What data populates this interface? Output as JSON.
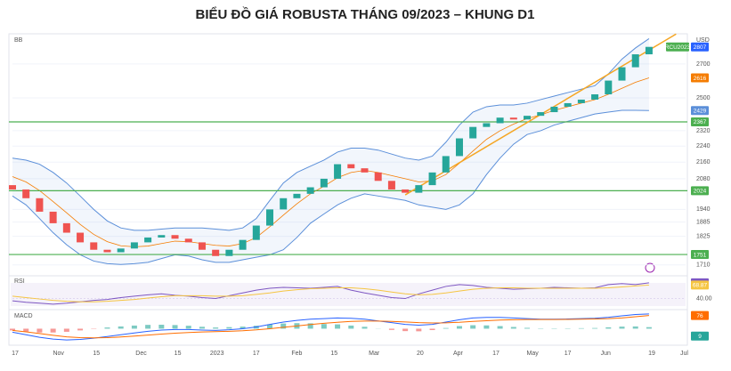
{
  "chart_data": [
    {
      "type": "candlestick",
      "title": "BIỂU ĐỒ GIÁ ROBUSTA THÁNG 09/2023 – KHUNG D1",
      "panel_label": "BB",
      "unit_label": "USD",
      "symbol": "RCU2023",
      "log_scale": true,
      "x": [
        0,
        1,
        2,
        3,
        4,
        5,
        6,
        7,
        8,
        9,
        10,
        11,
        12,
        13,
        14,
        15,
        16,
        17,
        18,
        19,
        20,
        21,
        22,
        23,
        24,
        25,
        26,
        27,
        28,
        29,
        30,
        31,
        32,
        33,
        34,
        35,
        36,
        37,
        38,
        39,
        40,
        41,
        42,
        43,
        44,
        45,
        46,
        47
      ],
      "open": [
        2050,
        2030,
        1990,
        1930,
        1880,
        1840,
        1800,
        1770,
        1760,
        1775,
        1800,
        1820,
        1830,
        1815,
        1800,
        1770,
        1745,
        1770,
        1810,
        1870,
        1940,
        1990,
        2010,
        2040,
        2080,
        2150,
        2130,
        2110,
        2070,
        2030,
        2015,
        2050,
        2110,
        2190,
        2280,
        2340,
        2360,
        2390,
        2380,
        2400,
        2420,
        2450,
        2470,
        2490,
        2520,
        2600,
        2680,
        2760
      ],
      "close": [
        2030,
        1990,
        1930,
        1880,
        1840,
        1800,
        1770,
        1760,
        1775,
        1800,
        1820,
        1830,
        1815,
        1800,
        1770,
        1745,
        1770,
        1810,
        1870,
        1940,
        1990,
        2010,
        2040,
        2080,
        2150,
        2130,
        2110,
        2070,
        2030,
        2015,
        2050,
        2110,
        2190,
        2280,
        2340,
        2360,
        2390,
        2380,
        2400,
        2420,
        2450,
        2470,
        2490,
        2520,
        2600,
        2680,
        2760,
        2807
      ],
      "up_color": "#26a69a",
      "down_color": "#ef5350",
      "upper": [
        2180,
        2170,
        2150,
        2110,
        2060,
        2000,
        1940,
        1890,
        1860,
        1850,
        1850,
        1855,
        1860,
        1860,
        1860,
        1855,
        1850,
        1860,
        1900,
        1980,
        2060,
        2110,
        2140,
        2170,
        2210,
        2230,
        2230,
        2220,
        2200,
        2180,
        2170,
        2190,
        2260,
        2350,
        2420,
        2450,
        2460,
        2460,
        2470,
        2490,
        2510,
        2530,
        2550,
        2570,
        2640,
        2730,
        2800,
        2860
      ],
      "basis": [
        2090,
        2065,
        2025,
        1975,
        1925,
        1875,
        1833,
        1803,
        1786,
        1782,
        1785,
        1795,
        1805,
        1803,
        1795,
        1788,
        1785,
        1795,
        1820,
        1865,
        1915,
        1965,
        2010,
        2045,
        2085,
        2110,
        2120,
        2110,
        2095,
        2080,
        2065,
        2070,
        2100,
        2155,
        2215,
        2275,
        2320,
        2355,
        2385,
        2405,
        2430,
        2450,
        2470,
        2490,
        2520,
        2555,
        2590,
        2616
      ],
      "lower": [
        2000,
        1960,
        1900,
        1840,
        1790,
        1750,
        1725,
        1715,
        1712,
        1715,
        1720,
        1735,
        1750,
        1745,
        1730,
        1720,
        1720,
        1730,
        1740,
        1750,
        1770,
        1820,
        1880,
        1920,
        1960,
        1990,
        2010,
        2000,
        1990,
        1980,
        1960,
        1950,
        1940,
        1960,
        2010,
        2100,
        2180,
        2250,
        2300,
        2320,
        2350,
        2370,
        2390,
        2410,
        2420,
        2430,
        2430,
        2429
      ],
      "band_color": "#5b8fd9",
      "basis_color": "#f57c00",
      "trendline": {
        "x": [
          29,
          49
        ],
        "values": [
          2005,
          2890
        ],
        "color": "#f5a623"
      },
      "levels": [
        2367,
        2024,
        1751
      ],
      "level_color": "#4caf50",
      "ylim": [
        1675,
        2880
      ],
      "yticks": [
        2700,
        2500,
        2320,
        2240,
        2160,
        2080,
        1940,
        1885,
        1825,
        1710
      ],
      "xlim": [
        0,
        49.7
      ],
      "xticks": [
        {
          "value": 0.2,
          "label": "17"
        },
        {
          "value": 3.4,
          "label": "Nov"
        },
        {
          "value": 6.2,
          "label": "15"
        },
        {
          "value": 9.5,
          "label": "Dec"
        },
        {
          "value": 12.2,
          "label": "15"
        },
        {
          "value": 15.1,
          "label": "2023"
        },
        {
          "value": 18,
          "label": "17"
        },
        {
          "value": 21,
          "label": "Feb"
        },
        {
          "value": 23.75,
          "label": "15"
        },
        {
          "value": 26.7,
          "label": "Mar"
        },
        {
          "value": 30.1,
          "label": "20"
        },
        {
          "value": 32.9,
          "label": "Apr"
        },
        {
          "value": 35.7,
          "label": "17"
        },
        {
          "value": 38.4,
          "label": "May"
        },
        {
          "value": 41,
          "label": "17"
        },
        {
          "value": 43.8,
          "label": "Jun"
        },
        {
          "value": 47.2,
          "label": "19"
        },
        {
          "value": 49.6,
          "label": "Jul"
        }
      ]
    },
    {
      "type": "line",
      "panel_label": "RSI",
      "series": [
        {
          "color": "#7e57c2",
          "values": [
            35,
            32,
            30,
            28,
            30,
            33,
            36,
            38,
            42,
            45,
            48,
            50,
            47,
            45,
            42,
            40,
            46,
            52,
            58,
            62,
            64,
            63,
            62,
            64,
            66,
            58,
            52,
            47,
            42,
            40,
            50,
            58,
            66,
            70,
            68,
            64,
            62,
            60,
            61,
            62,
            64,
            63,
            62,
            63,
            70,
            72,
            70,
            73.71
          ]
        },
        {
          "color": "#f5c542",
          "values": [
            45,
            42,
            39,
            36,
            34,
            33,
            33,
            34,
            36,
            38,
            41,
            44,
            46,
            46,
            46,
            45,
            45,
            46,
            49,
            52,
            56,
            59,
            61,
            62,
            63,
            63,
            61,
            58,
            54,
            50,
            48,
            49,
            52,
            56,
            60,
            62,
            63,
            63,
            62,
            62,
            62,
            62,
            62,
            62,
            63,
            65,
            67,
            68.87
          ]
        }
      ],
      "ylim": [
        20,
        85
      ],
      "yticks": [
        {
          "value": 40,
          "label": "40.00"
        }
      ]
    },
    {
      "type": "macd",
      "panel_label": "MACD",
      "series": [
        {
          "color": "#2962ff",
          "values": [
            -20,
            -35,
            -50,
            -60,
            -65,
            -62,
            -55,
            -45,
            -35,
            -25,
            -15,
            -8,
            -5,
            -5,
            -8,
            -10,
            -6,
            0,
            10,
            25,
            38,
            48,
            55,
            58,
            62,
            60,
            55,
            45,
            35,
            25,
            20,
            25,
            38,
            52,
            62,
            65,
            65,
            62,
            58,
            55,
            55,
            56,
            58,
            60,
            66,
            74,
            82,
            85
          ]
        },
        {
          "color": "#ff6d00",
          "values": [
            -10,
            -18,
            -28,
            -38,
            -47,
            -52,
            -53,
            -52,
            -48,
            -43,
            -37,
            -31,
            -26,
            -22,
            -19,
            -17,
            -15,
            -12,
            -7,
            0,
            8,
            16,
            24,
            31,
            37,
            42,
            44,
            44,
            42,
            39,
            35,
            33,
            34,
            37,
            42,
            46,
            50,
            52,
            53,
            53,
            53,
            54,
            55,
            56,
            58,
            62,
            69,
            76
          ]
        }
      ],
      "histogram": {
        "up_color": "#26a69a",
        "down_color": "#ef5350",
        "values": [
          -10,
          -17,
          -22,
          -22,
          -18,
          -10,
          -2,
          7,
          13,
          18,
          22,
          23,
          21,
          17,
          11,
          7,
          9,
          12,
          17,
          25,
          30,
          32,
          31,
          27,
          25,
          18,
          11,
          1,
          -7,
          -14,
          -15,
          -8,
          4,
          15,
          20,
          19,
          15,
          10,
          5,
          2,
          2,
          2,
          3,
          4,
          8,
          12,
          13,
          9
        ]
      },
      "ylim": [
        -80,
        100
      ]
    }
  ]
}
